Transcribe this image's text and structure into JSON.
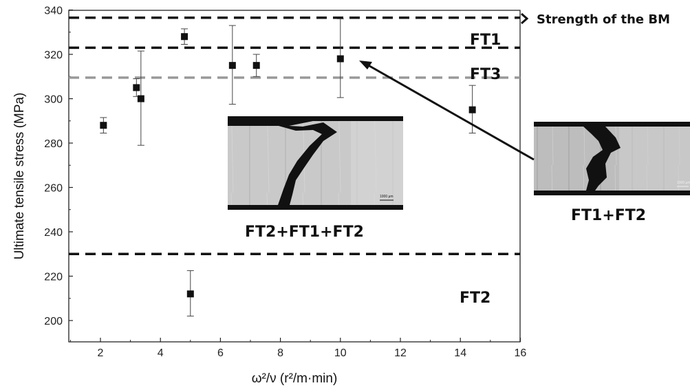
{
  "chart_data": {
    "type": "scatter",
    "title": "",
    "xlabel": "ω²/ν (r²/m·min)",
    "ylabel": "Ultimate tensile stress (MPa)",
    "xlim": [
      1,
      16
    ],
    "ylim": [
      190,
      340
    ],
    "xticks": [
      2,
      4,
      6,
      8,
      10,
      12,
      14,
      16
    ],
    "yticks": [
      200,
      220,
      240,
      260,
      280,
      300,
      320,
      340
    ],
    "grid": false,
    "points": [
      {
        "x": 2.1,
        "y": 288,
        "err_low": 284.5,
        "err_high": 291.5
      },
      {
        "x": 3.2,
        "y": 305,
        "err_low": 301,
        "err_high": 309
      },
      {
        "x": 3.35,
        "y": 300,
        "err_low": 279,
        "err_high": 321.5
      },
      {
        "x": 4.8,
        "y": 328,
        "err_low": 324.5,
        "err_high": 331.5
      },
      {
        "x": 5.0,
        "y": 212,
        "err_low": 202,
        "err_high": 222.5
      },
      {
        "x": 6.4,
        "y": 315,
        "err_low": 297.5,
        "err_high": 333
      },
      {
        "x": 7.2,
        "y": 315,
        "err_low": 310,
        "err_high": 320
      },
      {
        "x": 10.0,
        "y": 318,
        "err_low": 300.5,
        "err_high": 336
      },
      {
        "x": 14.4,
        "y": 295,
        "err_low": 284.5,
        "err_high": 306
      }
    ],
    "reference_lines": [
      {
        "y": 336.5,
        "color": "#111111",
        "label": "Strength of the BM"
      },
      {
        "y": 323,
        "color": "#111111",
        "label": ""
      },
      {
        "y": 309.5,
        "color": "#999999",
        "label": ""
      },
      {
        "y": 230,
        "color": "#111111",
        "label": ""
      }
    ],
    "region_labels": [
      "FT1",
      "FT3",
      "FT2"
    ],
    "micrograph_captions": [
      "FT2+FT1+FT2",
      "FT1+FT2"
    ],
    "scale_bar_text": "1000 μm",
    "annotation_arrow": {
      "from_image": "FT1+FT2",
      "to_point_x": 10.0,
      "to_point_y": 318
    }
  }
}
